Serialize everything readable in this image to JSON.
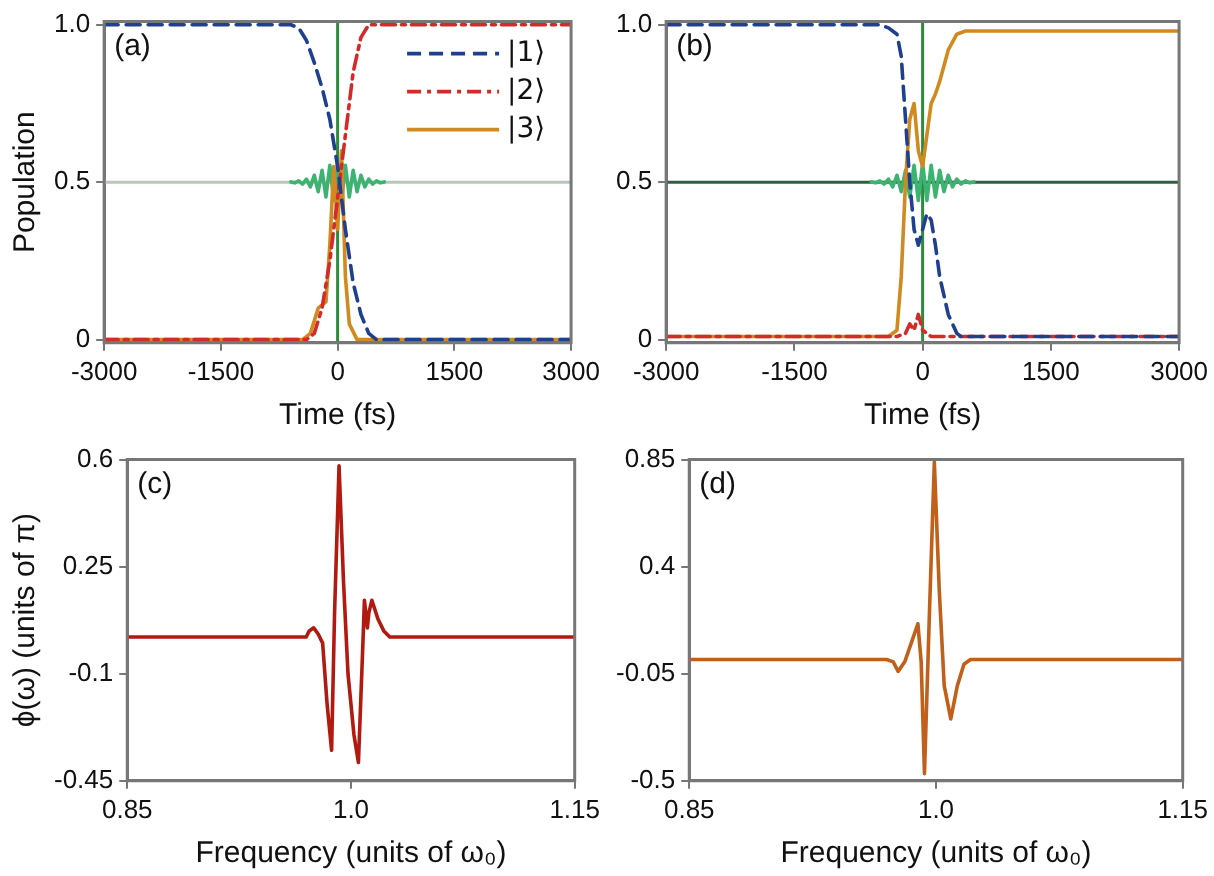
{
  "chart_data": [
    {
      "type": "line",
      "xlabel": "Time (fs)",
      "ylabel": "Population",
      "annotations": [
        "(a)"
      ],
      "xlim": [
        -3000,
        3000
      ],
      "xticks": [
        -3000,
        -1500,
        0,
        1500,
        3000
      ],
      "ylim": [
        -0.01,
        1.01
      ],
      "yticks": [
        0,
        0.5,
        {
          "value": 1,
          "label": "1.0"
        }
      ],
      "grid": false,
      "legend": "top right",
      "marker": "none",
      "ref_lines": [
        {
          "axis": "y",
          "value": 0.5,
          "color": "#b8c8b8"
        },
        {
          "axis": "x",
          "value": 0,
          "color": "#2e8b3e"
        }
      ],
      "series": [
        {
          "name": "|1⟩",
          "color": "#1f3f8f",
          "line_style": "dashed",
          "x": [
            -3000,
            -600,
            -500,
            -400,
            -300,
            -200,
            -100,
            0,
            100,
            200,
            300,
            400,
            500,
            3000
          ],
          "values": [
            1,
            1,
            0.99,
            0.95,
            0.88,
            0.8,
            0.7,
            0.55,
            0.35,
            0.18,
            0.08,
            0.02,
            0,
            0
          ]
        },
        {
          "name": "|2⟩",
          "color": "#d42a2a",
          "line_style": "dashdot",
          "x": [
            -3000,
            -400,
            -300,
            -200,
            -100,
            0,
            100,
            200,
            300,
            400,
            3000
          ],
          "values": [
            0,
            0,
            0.02,
            0.1,
            0.25,
            0.45,
            0.65,
            0.85,
            0.96,
            1,
            1
          ]
        },
        {
          "name": "|3⟩",
          "color": "#d08a20",
          "line_style": "solid",
          "x": [
            -3000,
            -450,
            -350,
            -250,
            -150,
            -100,
            -50,
            0,
            50,
            100,
            150,
            250,
            3000
          ],
          "values": [
            0,
            0,
            0.02,
            0.1,
            0.12,
            0.3,
            0.55,
            0.35,
            0.6,
            0.2,
            0.05,
            0,
            0
          ]
        },
        {
          "color": "#3cb371",
          "line_style": "solid",
          "x": [
            -600,
            -550,
            -500,
            -450,
            -400,
            -350,
            -300,
            -250,
            -200,
            -150,
            -100,
            -50,
            0,
            50,
            100,
            150,
            200,
            250,
            300,
            350,
            400,
            450,
            500,
            550,
            600
          ],
          "values": [
            0.501,
            0.498,
            0.504,
            0.494,
            0.51,
            0.485,
            0.522,
            0.47,
            0.538,
            0.453,
            0.554,
            0.442,
            0.56,
            0.442,
            0.554,
            0.453,
            0.538,
            0.47,
            0.522,
            0.485,
            0.51,
            0.494,
            0.504,
            0.498,
            0.501
          ]
        }
      ]
    },
    {
      "type": "line",
      "xlabel": "Time (fs)",
      "annotations": [
        "(b)"
      ],
      "xlim": [
        -3000,
        3000
      ],
      "xticks": [
        -3000,
        -1500,
        0,
        1500,
        3000
      ],
      "ylim": [
        -0.01,
        1.01
      ],
      "yticks": [
        0,
        0.5,
        {
          "value": 1,
          "label": "1.0"
        }
      ],
      "grid": false,
      "marker": "none",
      "ref_lines": [
        {
          "axis": "y",
          "value": 0.5,
          "color": "#2f5f3f"
        },
        {
          "axis": "x",
          "value": 0,
          "color": "#2e8b3e"
        }
      ],
      "series": [
        {
          "color": "#1f3f8f",
          "line_style": "dashed",
          "x": [
            -3000,
            -500,
            -400,
            -300,
            -250,
            -200,
            -150,
            -100,
            -50,
            0,
            50,
            100,
            150,
            200,
            300,
            400,
            450,
            500,
            3000
          ],
          "values": [
            1,
            1,
            0.99,
            0.97,
            0.9,
            0.7,
            0.5,
            0.35,
            0.3,
            0.35,
            0.4,
            0.38,
            0.3,
            0.2,
            0.08,
            0.02,
            0.01,
            0.01,
            0.01
          ]
        },
        {
          "color": "#d42a2a",
          "line_style": "dashdot",
          "x": [
            -3000,
            -300,
            -200,
            -150,
            -100,
            -50,
            0,
            50,
            100,
            3000
          ],
          "values": [
            0.01,
            0.01,
            0.02,
            0.05,
            0.03,
            0.08,
            0.03,
            0.02,
            0.01,
            0.01
          ]
        },
        {
          "color": "#d08a20",
          "line_style": "solid",
          "x": [
            -3000,
            -400,
            -300,
            -250,
            -200,
            -150,
            -100,
            -50,
            0,
            50,
            100,
            150,
            200,
            300,
            400,
            500,
            3000
          ],
          "values": [
            0.01,
            0.01,
            0.03,
            0.2,
            0.5,
            0.7,
            0.75,
            0.6,
            0.55,
            0.65,
            0.75,
            0.78,
            0.82,
            0.92,
            0.97,
            0.98,
            0.98
          ]
        },
        {
          "color": "#3cb371",
          "line_style": "solid",
          "x": [
            -600,
            -550,
            -500,
            -450,
            -400,
            -350,
            -300,
            -250,
            -200,
            -150,
            -100,
            -50,
            0,
            50,
            100,
            150,
            200,
            250,
            300,
            350,
            400,
            450,
            500,
            550,
            600
          ],
          "values": [
            0.501,
            0.498,
            0.504,
            0.494,
            0.51,
            0.485,
            0.522,
            0.47,
            0.538,
            0.453,
            0.554,
            0.442,
            0.56,
            0.442,
            0.554,
            0.453,
            0.538,
            0.47,
            0.522,
            0.485,
            0.51,
            0.494,
            0.504,
            0.498,
            0.501
          ]
        }
      ]
    },
    {
      "type": "line",
      "xlabel": "Frequency (units of ω₀)",
      "ylabel": "ϕ(ω) (units of π)",
      "annotations": [
        "(c)"
      ],
      "xlim": [
        0.85,
        1.15
      ],
      "xticks": [
        0.85,
        {
          "value": 1,
          "label": "1.0"
        },
        1.15
      ],
      "ylim": [
        -0.45,
        0.6
      ],
      "yticks": [
        -0.45,
        -0.1,
        0.25,
        0.6
      ],
      "grid": false,
      "marker": "none",
      "series": [
        {
          "color": "#b01a10",
          "line_style": "solid",
          "x": [
            0.85,
            0.97,
            0.972,
            0.975,
            0.978,
            0.981,
            0.984,
            0.987,
            0.989,
            0.992,
            0.995,
            0.998,
            1.002,
            1.005,
            1.008,
            1.009,
            1.011,
            1.012,
            1.014,
            1.018,
            1.022,
            1.026,
            1.15
          ],
          "values": [
            0.02,
            0.02,
            0.04,
            0.05,
            0.03,
            0,
            -0.2,
            -0.35,
            0.1,
            0.58,
            0.2,
            -0.1,
            -0.3,
            -0.39,
            0,
            0.14,
            0.05,
            0.1,
            0.14,
            0.08,
            0.04,
            0.02,
            0.02
          ]
        }
      ]
    },
    {
      "type": "line",
      "xlabel": "Frequency (units of ω₀)",
      "annotations": [
        "(d)"
      ],
      "xlim": [
        0.85,
        1.15
      ],
      "xticks": [
        0.85,
        {
          "value": 1,
          "label": "1.0"
        },
        1.15
      ],
      "ylim": [
        -0.5,
        0.85
      ],
      "yticks": [
        -0.5,
        -0.05,
        0.4,
        0.85
      ],
      "grid": false,
      "marker": "none",
      "series": [
        {
          "color": "#c0601a",
          "line_style": "solid",
          "x": [
            0.85,
            0.97,
            0.974,
            0.977,
            0.981,
            0.985,
            0.989,
            0.991,
            0.993,
            0.996,
            0.999,
            1.002,
            1.005,
            1.009,
            1.013,
            1.017,
            1.021,
            1.15
          ],
          "values": [
            0.01,
            0.01,
            0,
            -0.04,
            0,
            0.08,
            0.16,
            0.0,
            -0.47,
            0.2,
            0.84,
            0.3,
            -0.1,
            -0.24,
            -0.1,
            -0.01,
            0.01,
            0.01
          ]
        }
      ]
    }
  ]
}
